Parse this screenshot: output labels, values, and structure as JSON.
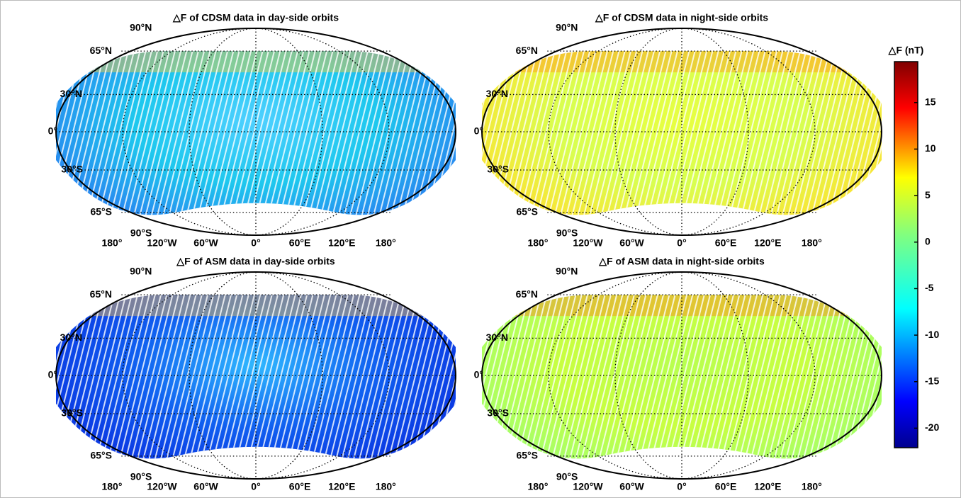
{
  "panels": [
    {
      "title": "△F of CDSM data in day-side orbits",
      "lat_labels": [
        "90°N",
        "65°N",
        "30°N",
        "0°",
        "30°S",
        "65°S",
        "90°S"
      ],
      "lon_labels": [
        "180°",
        "120°W",
        "60°W",
        "0°",
        "60°E",
        "120°E",
        "180°"
      ]
    },
    {
      "title": "△F of CDSM data in night-side orbits",
      "lat_labels": [
        "90°N",
        "65°N",
        "30°N",
        "0°",
        "30°S",
        "65°S",
        "90°S"
      ],
      "lon_labels": [
        "180°",
        "120°W",
        "60°W",
        "0°",
        "60°E",
        "120°E",
        "180°"
      ]
    },
    {
      "title": "△F of ASM data in day-side orbits",
      "lat_labels": [
        "90°N",
        "65°N",
        "30°N",
        "0°",
        "30°S",
        "65°S",
        "90°S"
      ],
      "lon_labels": [
        "180°",
        "120°W",
        "60°W",
        "0°",
        "60°E",
        "120°E",
        "180°"
      ]
    },
    {
      "title": "△F of ASM data in night-side orbits",
      "lat_labels": [
        "90°N",
        "65°N",
        "30°N",
        "0°",
        "30°S",
        "65°S",
        "90°S"
      ],
      "lon_labels": [
        "180°",
        "120°W",
        "60°W",
        "0°",
        "60°E",
        "120°E",
        "180°"
      ]
    }
  ],
  "colorbar": {
    "label": "△F (nT)",
    "lim": [
      -22.1,
      19.4
    ],
    "ticks": [
      15,
      10,
      5,
      0,
      -5,
      -10,
      -15,
      -20
    ]
  }
}
